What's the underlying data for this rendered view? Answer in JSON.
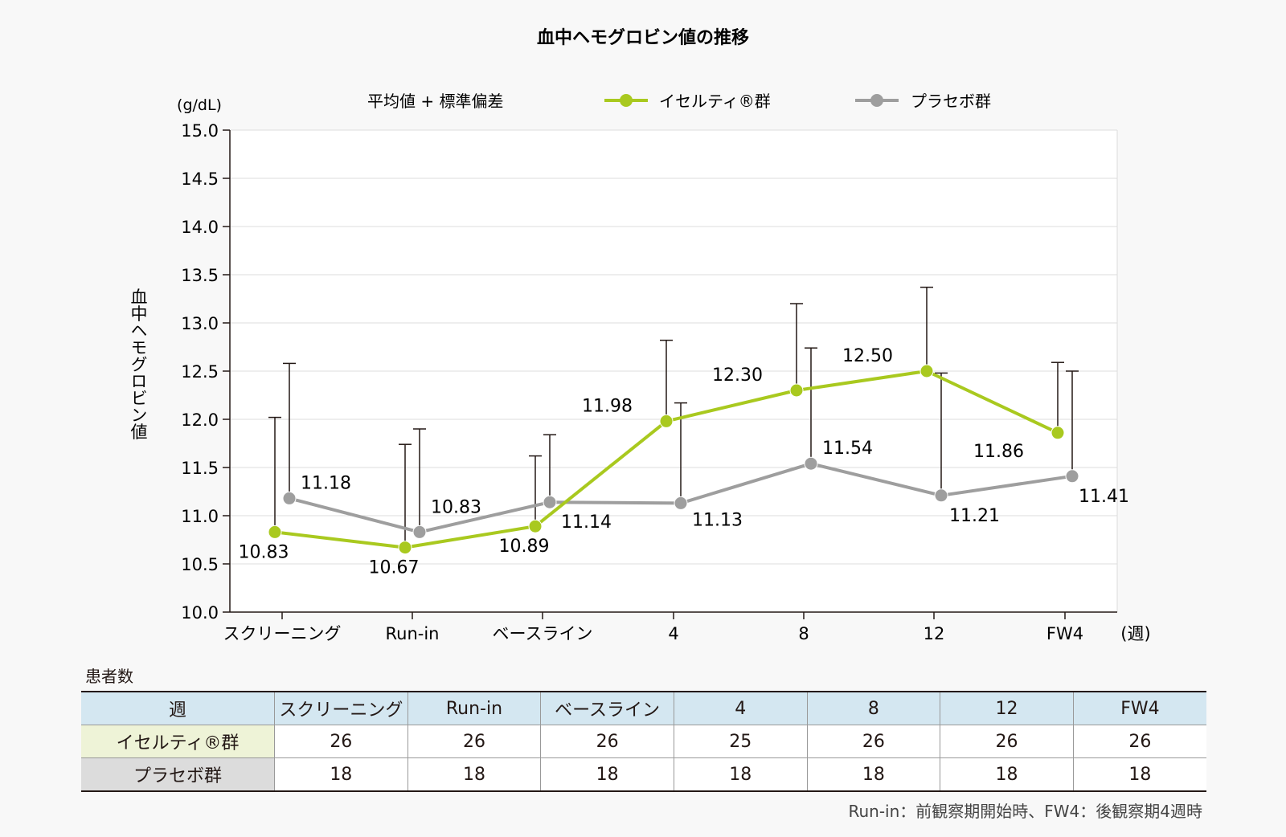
{
  "chart_data": {
    "type": "line",
    "title": "血中ヘモグロビン値の推移",
    "ylabel": "血中ヘモグロビン値",
    "yunit": "(g/dL)",
    "xunit": "(週)",
    "legend_note": "平均値 + 標準偏差",
    "categories": [
      "スクリーニング",
      "Run-in",
      "ベースライン",
      "4",
      "8",
      "12",
      "FW4"
    ],
    "ylim": [
      10.0,
      15.0
    ],
    "yticks": [
      "10.0",
      "10.5",
      "11.0",
      "11.5",
      "12.0",
      "12.5",
      "13.0",
      "13.5",
      "14.0",
      "14.5",
      "15.0"
    ],
    "grid": true,
    "legend_position": "top",
    "series": [
      {
        "name": "イセルティ®群",
        "color": "#a9c91f",
        "values": [
          10.83,
          10.67,
          10.89,
          11.98,
          12.3,
          12.5,
          11.86
        ],
        "labels": [
          "10.83",
          "10.67",
          "10.89",
          "11.98",
          "12.30",
          "12.50",
          "11.86"
        ],
        "sd_upper": [
          12.02,
          11.74,
          11.62,
          12.82,
          13.2,
          13.37,
          12.59
        ]
      },
      {
        "name": "プラセボ群",
        "color": "#9e9e9e",
        "values": [
          11.18,
          10.83,
          11.14,
          11.13,
          11.54,
          11.21,
          11.41
        ],
        "labels": [
          "11.18",
          "10.83",
          "11.14",
          "11.13",
          "11.54",
          "11.21",
          "11.41"
        ],
        "sd_upper": [
          12.58,
          11.9,
          11.84,
          12.17,
          12.74,
          12.48,
          12.5
        ]
      }
    ]
  },
  "counts": {
    "heading": "患者数",
    "header_label": "週",
    "columns": [
      "スクリーニング",
      "Run-in",
      "ベースライン",
      "4",
      "8",
      "12",
      "FW4"
    ],
    "rows": [
      {
        "label": "イセルティ®群",
        "values": [
          "26",
          "26",
          "26",
          "25",
          "26",
          "26",
          "26"
        ]
      },
      {
        "label": "プラセボ群",
        "values": [
          "18",
          "18",
          "18",
          "18",
          "18",
          "18",
          "18"
        ]
      }
    ]
  },
  "note": "Run-in：前観察期開始時、FW4：後観察期4週時"
}
